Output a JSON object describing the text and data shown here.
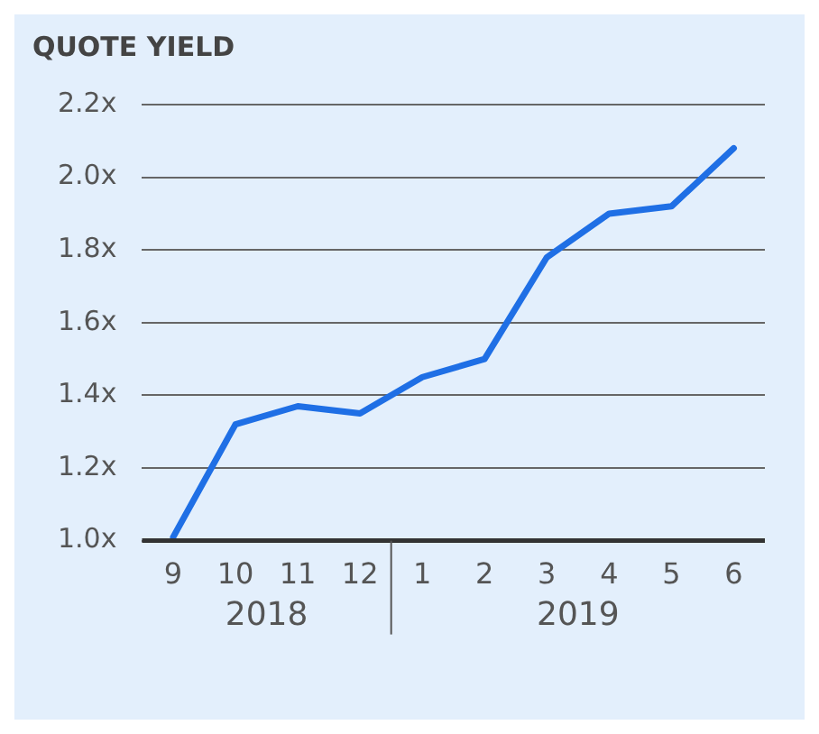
{
  "chart_data": {
    "type": "line",
    "title": "QUOTE YIELD",
    "categories": [
      "9",
      "10",
      "11",
      "12",
      "1",
      "2",
      "3",
      "4",
      "5",
      "6"
    ],
    "series": [
      {
        "color": "#1f6fe5",
        "values": [
          1.01,
          1.32,
          1.37,
          1.35,
          1.45,
          1.5,
          1.78,
          1.9,
          1.92,
          2.08
        ]
      }
    ],
    "ylim": [
      1.0,
      2.2
    ],
    "yticks": [
      {
        "value": 1.0,
        "label": "1.0x"
      },
      {
        "value": 1.2,
        "label": "1.2x"
      },
      {
        "value": 1.4,
        "label": "1.4x"
      },
      {
        "value": 1.6,
        "label": "1.6x"
      },
      {
        "value": 1.8,
        "label": "1.8x"
      },
      {
        "value": 2.0,
        "label": "2.0x"
      },
      {
        "value": 2.2,
        "label": "2.2x"
      }
    ],
    "grid": "y",
    "legend": false,
    "marker": "none",
    "line_style": "solid",
    "annotations": [
      "2018",
      "2019"
    ]
  }
}
